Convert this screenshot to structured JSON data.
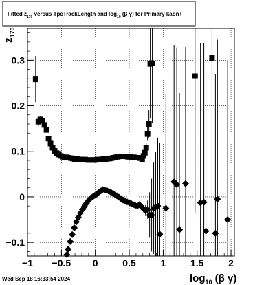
{
  "chart_data": {
    "type": "scatter",
    "title": {
      "pre": "Fitted  z",
      "sub1": "170",
      "mid": "  versus TpcTrackLength and log",
      "sub2": "10",
      "post": " (β  γ) for Primary kaon+"
    },
    "ylabel": {
      "main": "z",
      "sub": "170"
    },
    "xlabel": {
      "main": "log",
      "sub": "10",
      "post": " (β γ)"
    },
    "xlim": [
      -1,
      2.05
    ],
    "ylim": [
      -0.13,
      0.37
    ],
    "grid": true,
    "x_ticks": [
      {
        "v": -1,
        "label": "−1"
      },
      {
        "v": -0.5,
        "label": "−0.5"
      },
      {
        "v": 0,
        "label": "0"
      },
      {
        "v": 0.5,
        "label": "0.5"
      },
      {
        "v": 1,
        "label": "1"
      },
      {
        "v": 1.5,
        "label": "1.5"
      },
      {
        "v": 2,
        "label": "2"
      }
    ],
    "y_ticks": [
      {
        "v": -0.1,
        "label": "−0.1"
      },
      {
        "v": 0,
        "label": "0"
      },
      {
        "v": 0.1,
        "label": "0.1"
      },
      {
        "v": 0.2,
        "label": "0.2"
      },
      {
        "v": 0.3,
        "label": "0.3"
      }
    ],
    "series": [
      {
        "marker": "square",
        "points": [
          [
            -0.88,
            0.258,
            0.05
          ],
          [
            -0.84,
            0.165,
            0.01
          ],
          [
            -0.81,
            0.17,
            0.007
          ],
          [
            -0.78,
            0.167,
            0.006
          ],
          [
            -0.75,
            0.158,
            0.005
          ],
          [
            -0.72,
            0.147,
            0.004
          ],
          [
            -0.69,
            0.128,
            0.003
          ],
          [
            -0.66,
            0.117,
            0.003
          ],
          [
            -0.63,
            0.108,
            0.003
          ],
          [
            -0.6,
            0.101,
            0.002
          ],
          [
            -0.57,
            0.096,
            0.002
          ],
          [
            -0.54,
            0.093,
            0.002
          ],
          [
            -0.51,
            0.09,
            0.002
          ],
          [
            -0.48,
            0.088,
            0.002
          ],
          [
            -0.45,
            0.087,
            0.002
          ],
          [
            -0.42,
            0.087,
            0.002
          ],
          [
            -0.39,
            0.086,
            0.002
          ],
          [
            -0.36,
            0.085,
            0.002
          ],
          [
            -0.33,
            0.084,
            0.002
          ],
          [
            -0.3,
            0.083,
            0.002
          ],
          [
            -0.27,
            0.083,
            0.002
          ],
          [
            -0.24,
            0.082,
            0.002
          ],
          [
            -0.21,
            0.082,
            0.002
          ],
          [
            -0.18,
            0.082,
            0.002
          ],
          [
            -0.15,
            0.082,
            0.002
          ],
          [
            -0.12,
            0.081,
            0.002
          ],
          [
            -0.09,
            0.081,
            0.002
          ],
          [
            -0.06,
            0.081,
            0.002
          ],
          [
            -0.03,
            0.081,
            0.002
          ],
          [
            0.0,
            0.081,
            0.002
          ],
          [
            0.03,
            0.082,
            0.002
          ],
          [
            0.06,
            0.082,
            0.002
          ],
          [
            0.09,
            0.082,
            0.002
          ],
          [
            0.12,
            0.083,
            0.002
          ],
          [
            0.15,
            0.083,
            0.002
          ],
          [
            0.18,
            0.084,
            0.002
          ],
          [
            0.21,
            0.084,
            0.002
          ],
          [
            0.24,
            0.085,
            0.002
          ],
          [
            0.27,
            0.086,
            0.002
          ],
          [
            0.3,
            0.087,
            0.002
          ],
          [
            0.33,
            0.088,
            0.002
          ],
          [
            0.36,
            0.089,
            0.002
          ],
          [
            0.39,
            0.089,
            0.002
          ],
          [
            0.42,
            0.089,
            0.002
          ],
          [
            0.45,
            0.089,
            0.002
          ],
          [
            0.48,
            0.088,
            0.002
          ],
          [
            0.51,
            0.088,
            0.002
          ],
          [
            0.54,
            0.087,
            0.002
          ],
          [
            0.57,
            0.087,
            0.002
          ],
          [
            0.6,
            0.086,
            0.002
          ],
          [
            0.63,
            0.086,
            0.003
          ],
          [
            0.66,
            0.085,
            0.003
          ],
          [
            0.69,
            0.083,
            0.004
          ],
          [
            0.71,
            0.09,
            0.005
          ],
          [
            0.73,
            0.097,
            0.007
          ],
          [
            0.75,
            0.108,
            0.01
          ],
          [
            0.77,
            0.138,
            0.015
          ],
          [
            0.79,
            0.16,
            0.03
          ],
          [
            0.81,
            0.292,
            0.12
          ],
          [
            0.84,
            0.293,
            0.13
          ],
          [
            1.47,
            0.265,
            0.3
          ],
          [
            1.72,
            0.305,
            0.4
          ]
        ]
      },
      {
        "marker": "diamond",
        "points": [
          [
            -0.42,
            -0.127,
            0.01
          ],
          [
            -0.4,
            -0.115,
            0.006
          ],
          [
            -0.37,
            -0.098,
            0.004
          ],
          [
            -0.34,
            -0.083,
            0.003
          ],
          [
            -0.31,
            -0.068,
            0.003
          ],
          [
            -0.28,
            -0.055,
            0.002
          ],
          [
            -0.25,
            -0.045,
            0.002
          ],
          [
            -0.22,
            -0.036,
            0.002
          ],
          [
            -0.19,
            -0.028,
            0.002
          ],
          [
            -0.16,
            -0.021,
            0.002
          ],
          [
            -0.13,
            -0.014,
            0.002
          ],
          [
            -0.1,
            -0.008,
            0.002
          ],
          [
            -0.07,
            -0.003,
            0.002
          ],
          [
            -0.04,
            0.0,
            0.002
          ],
          [
            -0.01,
            0.003,
            0.002
          ],
          [
            0.02,
            0.006,
            0.002
          ],
          [
            0.05,
            0.01,
            0.002
          ],
          [
            0.08,
            0.013,
            0.002
          ],
          [
            0.11,
            0.016,
            0.002
          ],
          [
            0.14,
            0.015,
            0.002
          ],
          [
            0.17,
            0.014,
            0.002
          ],
          [
            0.2,
            0.012,
            0.002
          ],
          [
            0.23,
            0.01,
            0.002
          ],
          [
            0.26,
            0.008,
            0.002
          ],
          [
            0.29,
            0.005,
            0.002
          ],
          [
            0.32,
            0.002,
            0.002
          ],
          [
            0.35,
            -0.001,
            0.002
          ],
          [
            0.38,
            -0.004,
            0.002
          ],
          [
            0.41,
            -0.007,
            0.002
          ],
          [
            0.44,
            -0.009,
            0.002
          ],
          [
            0.47,
            -0.011,
            0.002
          ],
          [
            0.5,
            -0.013,
            0.003
          ],
          [
            0.53,
            -0.015,
            0.003
          ],
          [
            0.56,
            -0.017,
            0.003
          ],
          [
            0.59,
            -0.019,
            0.004
          ],
          [
            0.62,
            -0.02,
            0.004
          ],
          [
            0.65,
            -0.017,
            0.005
          ],
          [
            0.68,
            -0.022,
            0.006
          ],
          [
            0.71,
            -0.026,
            0.008
          ],
          [
            0.74,
            -0.03,
            0.012
          ],
          [
            0.77,
            -0.028,
            0.02
          ],
          [
            0.8,
            -0.04,
            0.05
          ],
          [
            0.83,
            -0.04,
            0.08
          ],
          [
            0.86,
            -0.025,
            0.1
          ],
          [
            0.89,
            -0.022,
            0.12
          ],
          [
            0.92,
            -0.02,
            0.15
          ],
          [
            0.95,
            -0.082,
            0.2
          ],
          [
            1.04,
            -0.025,
            0.25
          ],
          [
            1.16,
            0.033,
            0.3
          ],
          [
            1.2,
            0.027,
            0.3
          ],
          [
            1.24,
            -0.072,
            0.3
          ],
          [
            1.33,
            0.029,
            0.3
          ],
          [
            1.55,
            -0.013,
            0.35
          ],
          [
            1.6,
            -0.012,
            0.35
          ],
          [
            1.63,
            -0.075,
            0.35
          ],
          [
            1.77,
            -0.08,
            0.35
          ],
          [
            1.8,
            -0.005,
            0.35
          ],
          [
            1.95,
            -0.05,
            0.35
          ]
        ]
      }
    ],
    "footer_date": "Wed Sep 18 16:33:54 2024"
  }
}
